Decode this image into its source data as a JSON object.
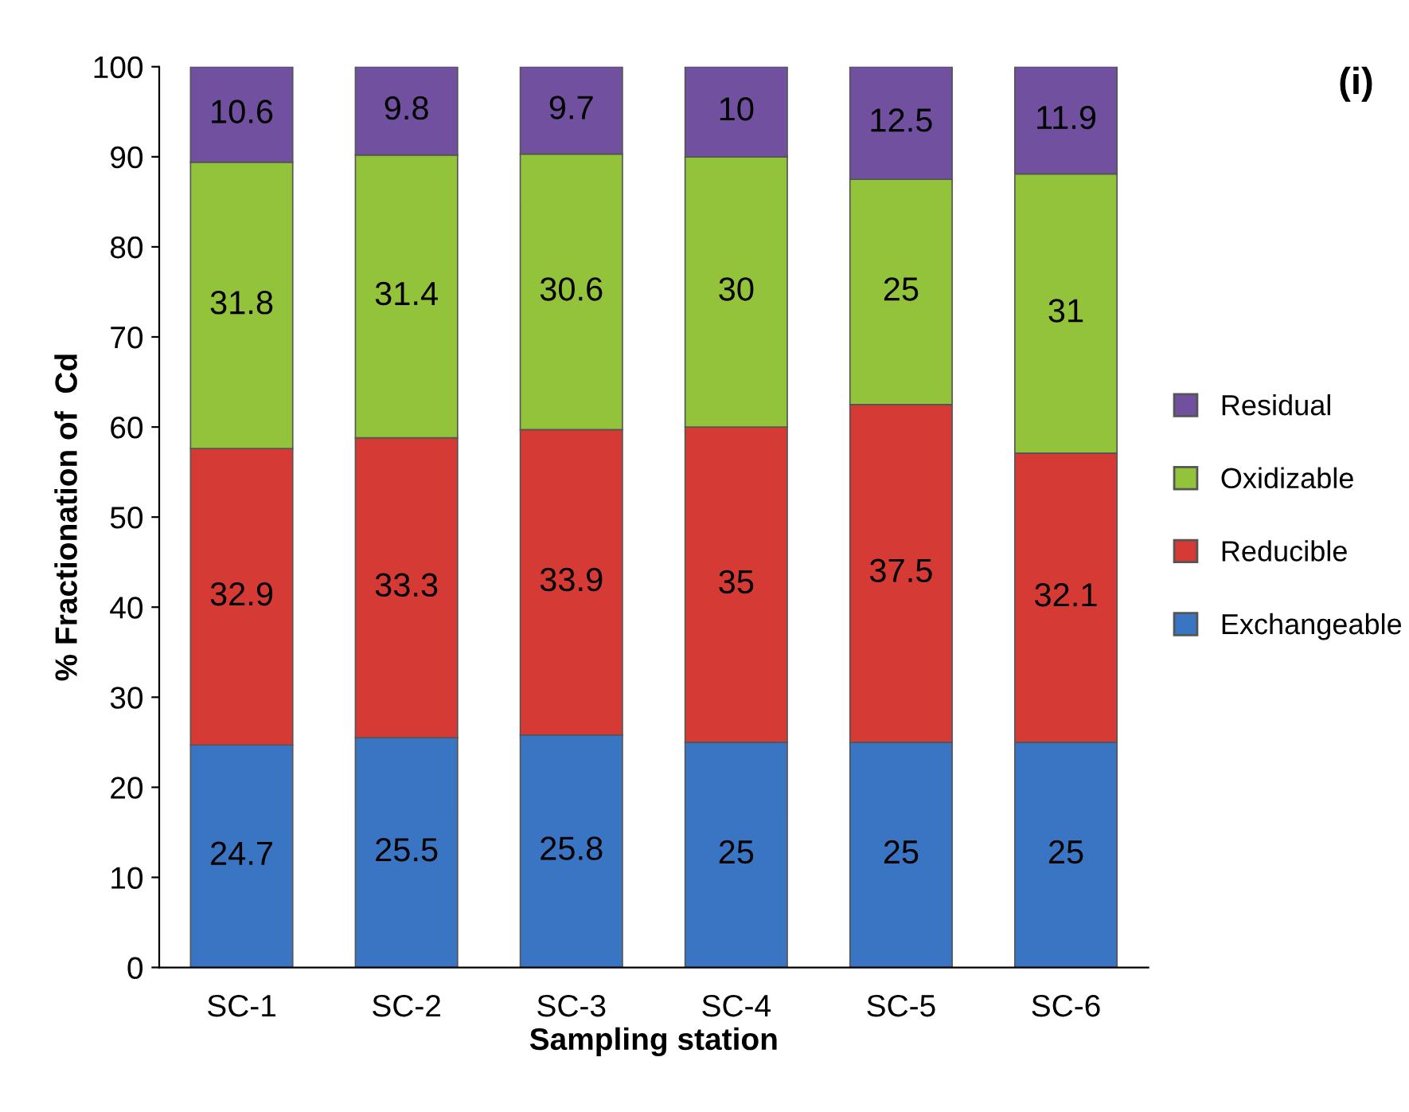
{
  "chart_data": {
    "type": "bar",
    "stacked": true,
    "xlabel": "Sampling station",
    "ylabel": "% Fractionation of  Cd",
    "categories": [
      "SC-1",
      "SC-2",
      "SC-3",
      "SC-4",
      "SC-5",
      "SC-6"
    ],
    "series": [
      {
        "name": "Exchangeable",
        "color": "#3a75c4",
        "values": [
          24.7,
          25.5,
          25.8,
          25,
          25,
          25
        ]
      },
      {
        "name": "Reducible",
        "color": "#d63a35",
        "values": [
          32.9,
          33.3,
          33.9,
          35,
          37.5,
          32.1
        ]
      },
      {
        "name": "Oxidizable",
        "color": "#93c33a",
        "values": [
          31.8,
          31.4,
          30.6,
          30,
          25,
          31
        ]
      },
      {
        "name": "Residual",
        "color": "#7150a0",
        "values": [
          10.6,
          9.8,
          9.7,
          10,
          12.5,
          11.9
        ]
      }
    ],
    "ylim": [
      0,
      100
    ],
    "yticks": [
      0,
      10,
      20,
      30,
      40,
      50,
      60,
      70,
      80,
      90,
      100
    ],
    "data_labels": true,
    "legend": "right",
    "grid": false,
    "annotations": [
      "(i)"
    ]
  }
}
